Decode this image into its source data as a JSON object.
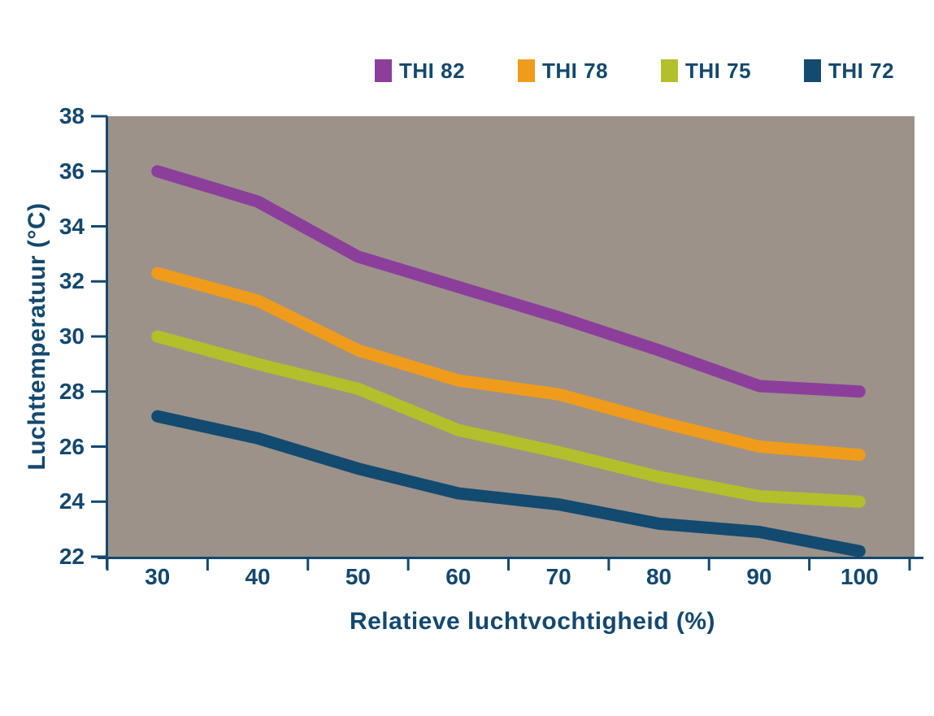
{
  "chart_data": {
    "type": "line",
    "title": "",
    "xlabel": "Relatieve luchtvochtigheid (%)",
    "ylabel": "Luchttemperatuur (°C)",
    "categories": [
      30,
      40,
      50,
      60,
      70,
      80,
      90,
      100
    ],
    "yticks": [
      38,
      36,
      34,
      32,
      30,
      28,
      26,
      24,
      22
    ],
    "ylim": [
      22,
      38
    ],
    "grid": false,
    "legend_position": "top-right",
    "plot_background": "#9C9289",
    "axis_color": "#14486E",
    "series": [
      {
        "name": "THI 82",
        "color": "#8B3F9B",
        "values": [
          36.0,
          34.9,
          32.9,
          31.8,
          30.7,
          29.5,
          28.2,
          28.0
        ]
      },
      {
        "name": "THI 78",
        "color": "#EF9C1C",
        "values": [
          32.3,
          31.3,
          29.5,
          28.4,
          27.9,
          26.9,
          26.0,
          25.7
        ]
      },
      {
        "name": "THI 75",
        "color": "#B2C02B",
        "values": [
          30.0,
          29.0,
          28.1,
          26.6,
          25.8,
          24.9,
          24.2,
          24.0
        ]
      },
      {
        "name": "THI 72",
        "color": "#134A6F",
        "values": [
          27.1,
          26.3,
          25.2,
          24.3,
          23.9,
          23.2,
          22.9,
          22.2
        ]
      }
    ]
  }
}
